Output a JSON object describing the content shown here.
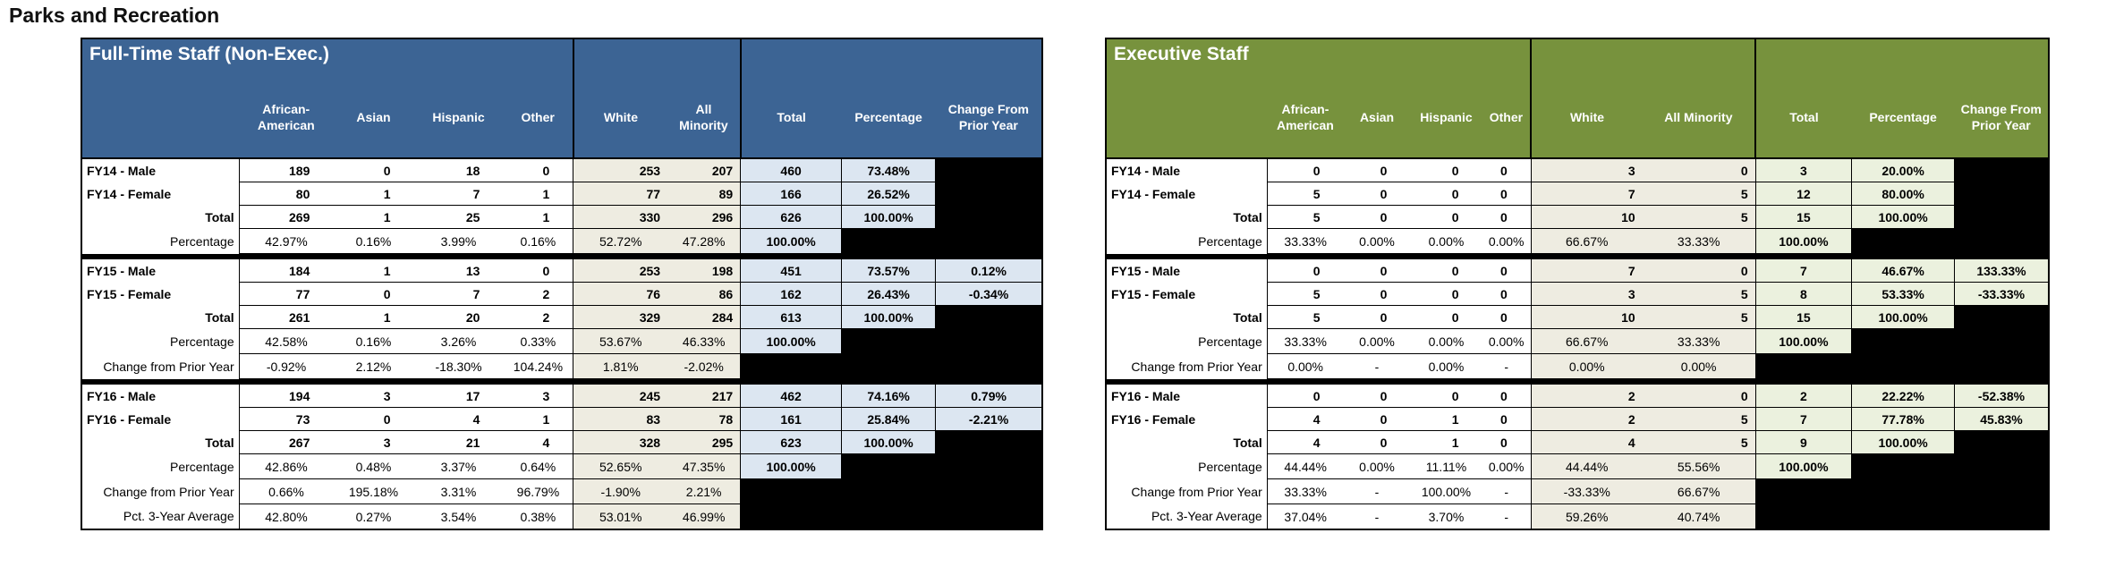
{
  "page_title": "Parks and Recreation",
  "tables": [
    {
      "id": "fulltime",
      "title": "Full-Time Staff (Non-Exec.)",
      "theme": {
        "header_bg": "#3C6494",
        "accent_bg": "#DCE6F1",
        "neutral_bg": "#EEECE1"
      },
      "columns": [
        "African-American",
        "Asian",
        "Hispanic",
        "Other",
        "White",
        "All Minority",
        "Total",
        "Percentage",
        "Change From Prior Year"
      ],
      "sections": [
        {
          "id": "FY14",
          "rows": [
            {
              "label": "FY14 - Male",
              "label_bold": true,
              "label_align": "left",
              "type": "count",
              "cells": [
                "189",
                "0",
                "18",
                "0",
                "253",
                "207",
                "460",
                "73.48%",
                null
              ]
            },
            {
              "label": "FY14 - Female",
              "label_bold": true,
              "label_align": "left",
              "type": "count",
              "cells": [
                "80",
                "1",
                "7",
                "1",
                "77",
                "89",
                "166",
                "26.52%",
                null
              ]
            },
            {
              "label": "Total",
              "label_bold": true,
              "label_align": "right",
              "type": "count",
              "cells": [
                "269",
                "1",
                "25",
                "1",
                "330",
                "296",
                "626",
                "100.00%",
                null
              ]
            },
            {
              "label": "Percentage",
              "label_bold": false,
              "label_align": "right",
              "type": "pct",
              "cells": [
                "42.97%",
                "0.16%",
                "3.99%",
                "0.16%",
                "52.72%",
                "47.28%",
                "100.00%",
                null,
                null
              ]
            }
          ]
        },
        {
          "id": "FY15",
          "rows": [
            {
              "label": "FY15 - Male",
              "label_bold": true,
              "label_align": "left",
              "type": "count",
              "cells": [
                "184",
                "1",
                "13",
                "0",
                "253",
                "198",
                "451",
                "73.57%",
                "0.12%"
              ]
            },
            {
              "label": "FY15 - Female",
              "label_bold": true,
              "label_align": "left",
              "type": "count",
              "cells": [
                "77",
                "0",
                "7",
                "2",
                "76",
                "86",
                "162",
                "26.43%",
                "-0.34%"
              ]
            },
            {
              "label": "Total",
              "label_bold": true,
              "label_align": "right",
              "type": "count",
              "cells": [
                "261",
                "1",
                "20",
                "2",
                "329",
                "284",
                "613",
                "100.00%",
                null
              ]
            },
            {
              "label": "Percentage",
              "label_bold": false,
              "label_align": "right",
              "type": "pct",
              "cells": [
                "42.58%",
                "0.16%",
                "3.26%",
                "0.33%",
                "53.67%",
                "46.33%",
                "100.00%",
                null,
                null
              ]
            },
            {
              "label": "Change from Prior Year",
              "label_bold": false,
              "label_align": "right",
              "type": "chg",
              "cells": [
                "-0.92%",
                "2.12%",
                "-18.30%",
                "104.24%",
                "1.81%",
                "-2.02%",
                null,
                null,
                null
              ]
            }
          ]
        },
        {
          "id": "FY16",
          "rows": [
            {
              "label": "FY16 - Male",
              "label_bold": true,
              "label_align": "left",
              "type": "count",
              "cells": [
                "194",
                "3",
                "17",
                "3",
                "245",
                "217",
                "462",
                "74.16%",
                "0.79%"
              ]
            },
            {
              "label": "FY16 - Female",
              "label_bold": true,
              "label_align": "left",
              "type": "count",
              "cells": [
                "73",
                "0",
                "4",
                "1",
                "83",
                "78",
                "161",
                "25.84%",
                "-2.21%"
              ]
            },
            {
              "label": "Total",
              "label_bold": true,
              "label_align": "right",
              "type": "count",
              "cells": [
                "267",
                "3",
                "21",
                "4",
                "328",
                "295",
                "623",
                "100.00%",
                null
              ]
            },
            {
              "label": "Percentage",
              "label_bold": false,
              "label_align": "right",
              "type": "pct",
              "cells": [
                "42.86%",
                "0.48%",
                "3.37%",
                "0.64%",
                "52.65%",
                "47.35%",
                "100.00%",
                null,
                null
              ]
            },
            {
              "label": "Change from Prior Year",
              "label_bold": false,
              "label_align": "right",
              "type": "chg",
              "cells": [
                "0.66%",
                "195.18%",
                "3.31%",
                "96.79%",
                "-1.90%",
                "2.21%",
                null,
                null,
                null
              ]
            },
            {
              "label": "Pct. 3-Year Average",
              "label_bold": false,
              "label_align": "right",
              "type": "chg",
              "cells": [
                "42.80%",
                "0.27%",
                "3.54%",
                "0.38%",
                "53.01%",
                "46.99%",
                null,
                null,
                null
              ]
            }
          ]
        }
      ]
    },
    {
      "id": "exec",
      "title": "Executive Staff",
      "theme": {
        "header_bg": "#77923D",
        "accent_bg": "#EBF1DE",
        "neutral_bg": "#EEECE1"
      },
      "columns": [
        "African-American",
        "Asian",
        "Hispanic",
        "Other",
        "White",
        "All Minority",
        "Total",
        "Percentage",
        "Change From Prior Year"
      ],
      "sections": [
        {
          "id": "FY14",
          "rows": [
            {
              "label": "FY14 - Male",
              "label_bold": true,
              "label_align": "left",
              "type": "count",
              "cells": [
                "0",
                "0",
                "0",
                "0",
                "3",
                "0",
                "3",
                "20.00%",
                null
              ]
            },
            {
              "label": "FY14 - Female",
              "label_bold": true,
              "label_align": "left",
              "type": "count",
              "cells": [
                "5",
                "0",
                "0",
                "0",
                "7",
                "5",
                "12",
                "80.00%",
                null
              ]
            },
            {
              "label": "Total",
              "label_bold": true,
              "label_align": "right",
              "type": "count",
              "cells": [
                "5",
                "0",
                "0",
                "0",
                "10",
                "5",
                "15",
                "100.00%",
                null
              ]
            },
            {
              "label": "Percentage",
              "label_bold": false,
              "label_align": "right",
              "type": "pct",
              "cells": [
                "33.33%",
                "0.00%",
                "0.00%",
                "0.00%",
                "66.67%",
                "33.33%",
                "100.00%",
                null,
                null
              ]
            }
          ]
        },
        {
          "id": "FY15",
          "rows": [
            {
              "label": "FY15 - Male",
              "label_bold": true,
              "label_align": "left",
              "type": "count",
              "cells": [
                "0",
                "0",
                "0",
                "0",
                "7",
                "0",
                "7",
                "46.67%",
                "133.33%"
              ]
            },
            {
              "label": "FY15 - Female",
              "label_bold": true,
              "label_align": "left",
              "type": "count",
              "cells": [
                "5",
                "0",
                "0",
                "0",
                "3",
                "5",
                "8",
                "53.33%",
                "-33.33%"
              ]
            },
            {
              "label": "Total",
              "label_bold": true,
              "label_align": "right",
              "type": "count",
              "cells": [
                "5",
                "0",
                "0",
                "0",
                "10",
                "5",
                "15",
                "100.00%",
                null
              ]
            },
            {
              "label": "Percentage",
              "label_bold": false,
              "label_align": "right",
              "type": "pct",
              "cells": [
                "33.33%",
                "0.00%",
                "0.00%",
                "0.00%",
                "66.67%",
                "33.33%",
                "100.00%",
                null,
                null
              ]
            },
            {
              "label": "Change from Prior Year",
              "label_bold": false,
              "label_align": "right",
              "type": "chg",
              "cells": [
                "0.00%",
                "-",
                "0.00%",
                "-",
                "0.00%",
                "0.00%",
                null,
                null,
                null
              ]
            }
          ]
        },
        {
          "id": "FY16",
          "rows": [
            {
              "label": "FY16 - Male",
              "label_bold": true,
              "label_align": "left",
              "type": "count",
              "cells": [
                "0",
                "0",
                "0",
                "0",
                "2",
                "0",
                "2",
                "22.22%",
                "-52.38%"
              ]
            },
            {
              "label": "FY16 - Female",
              "label_bold": true,
              "label_align": "left",
              "type": "count",
              "cells": [
                "4",
                "0",
                "1",
                "0",
                "2",
                "5",
                "7",
                "77.78%",
                "45.83%"
              ]
            },
            {
              "label": "Total",
              "label_bold": true,
              "label_align": "right",
              "type": "count",
              "cells": [
                "4",
                "0",
                "1",
                "0",
                "4",
                "5",
                "9",
                "100.00%",
                null
              ]
            },
            {
              "label": "Percentage",
              "label_bold": false,
              "label_align": "right",
              "type": "pct",
              "cells": [
                "44.44%",
                "0.00%",
                "11.11%",
                "0.00%",
                "44.44%",
                "55.56%",
                "100.00%",
                null,
                null
              ]
            },
            {
              "label": "Change from Prior Year",
              "label_bold": false,
              "label_align": "right",
              "type": "chg",
              "cells": [
                "33.33%",
                "-",
                "100.00%",
                "-",
                "-33.33%",
                "66.67%",
                null,
                null,
                null
              ]
            },
            {
              "label": "Pct. 3-Year Average",
              "label_bold": false,
              "label_align": "right",
              "type": "chg",
              "cells": [
                "37.04%",
                "-",
                "3.70%",
                "-",
                "59.26%",
                "40.74%",
                null,
                null,
                null
              ]
            }
          ]
        }
      ]
    }
  ]
}
